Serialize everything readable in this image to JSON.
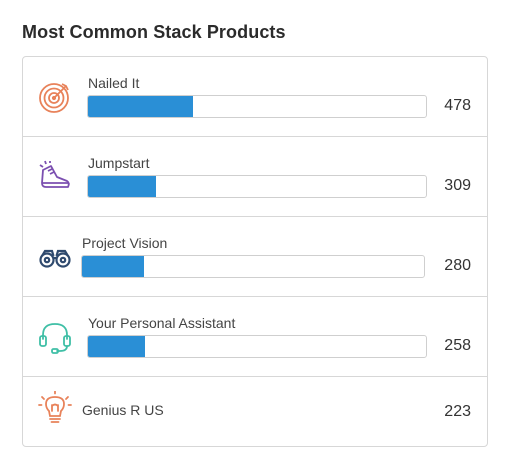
{
  "widget": {
    "title": "Most Common Stack Products"
  },
  "products": [
    {
      "name": "Nailed It",
      "count": "478",
      "fill_percent": 31,
      "icon": "target-icon",
      "color": "#e8825a"
    },
    {
      "name": "Jumpstart",
      "count": "309",
      "fill_percent": 20,
      "icon": "sneaker-icon",
      "color": "#7b4fb0"
    },
    {
      "name": "Project Vision",
      "count": "280",
      "fill_percent": 18,
      "icon": "binoculars-icon",
      "color": "#2f4a6e"
    },
    {
      "name": "Your Personal Assistant",
      "count": "258",
      "fill_percent": 17,
      "icon": "headset-icon",
      "color": "#3fbfa6"
    },
    {
      "name": "Genius R US",
      "count": "223",
      "icon": "lightbulb-icon",
      "color": "#e8825a"
    }
  ]
}
